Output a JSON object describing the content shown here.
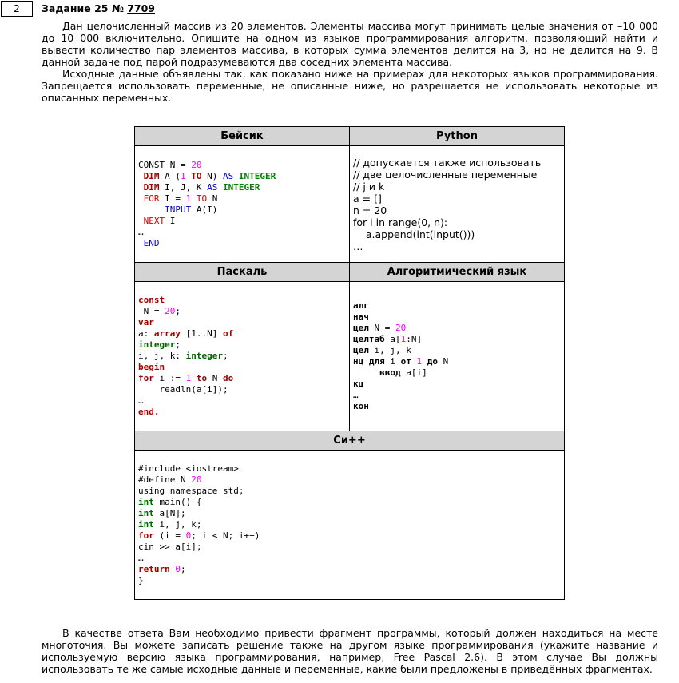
{
  "task": {
    "number": "2",
    "title_prefix": "Задание 25 №",
    "title_link": "7709"
  },
  "intro": {
    "p1": "Дан целочисленный массив из 20 элементов. Элементы массива могут принимать целые значения от –10 000 до 10 000 включительно. Опишите на одном из языков программирования алгоритм, позволяющий найти и вывести количество пар элементов массива, в которых сумма элементов делится на 3, но не делится на 9. В данной задаче под парой подразумеваются два соседних элемента массива.",
    "p2": "Исходные данные объявлены так, как показано ниже на примерах для некоторых языков программирования. Запрещается использовать переменные, не описанные ниже, но разрешается не использовать некоторые из описанных переменных."
  },
  "table": {
    "basic_header": "Бейсик",
    "python_header": "Python",
    "pascal_header": "Паскаль",
    "alg_header": "Алгоритмический язык",
    "cpp_header": "Си++"
  },
  "basic": {
    "l1": "CONST N = ",
    "l1n": "20",
    "l2a": " DIM",
    "l2b": " A (",
    "l2n": "1",
    "l2c": " TO",
    "l2d": " N) ",
    "l2e": "AS",
    "l2f": " INTEGER",
    "l3a": " DIM",
    "l3b": " I, J, K ",
    "l3c": "AS",
    "l3d": " INTEGER",
    "l4a": " FOR",
    "l4b": " I = ",
    "l4n": "1",
    "l4c": " TO",
    "l4d": " N",
    "l5a": "     INPUT",
    "l5b": " A(I)",
    "l6a": " NEXT",
    "l6b": " I",
    "l7": "…",
    "l8": " END"
  },
  "python": {
    "l1": "// допускается также использовать",
    "l2": "// две целочисленные переменные",
    "l3": "// j и k",
    "l4": "a = []",
    "l5": "n = 20",
    "l6": "for i in range(0, n):",
    "l7": "    a.append(int(input()))",
    "l8": "…"
  },
  "pascal": {
    "l1": "const",
    "l2a": " N = ",
    "l2n": "20",
    "l2b": ";",
    "l3": "var",
    "l4a": "a: ",
    "l4b": "array",
    "l4c": " [1..N] ",
    "l4d": "of",
    "l5a": "integer",
    "l5b": ";",
    "l6a": "i, j, k: ",
    "l6b": "integer",
    "l6c": ";",
    "l7": "begin",
    "l8a": "for",
    "l8b": " i := ",
    "l8n": "1",
    "l8c": " to",
    "l8d": " N ",
    "l8e": "do",
    "l9": "    readln(a[i]);",
    "l10": "…",
    "l11": "end."
  },
  "alg": {
    "l1": "алг",
    "l2": "нач",
    "l3a": "цел",
    "l3b": " N = ",
    "l3n": "20",
    "l4a": "целтаб",
    "l4b": " a[",
    "l4n": "1",
    "l4c": ":N]",
    "l5a": "цел",
    "l5b": " i, j, k",
    "l6a": "нц для",
    "l6b": " i ",
    "l6c": "от",
    "l6n": " 1",
    "l6d": " до",
    "l6e": " N",
    "l7a": "     ввод",
    "l7b": " a[i]",
    "l8": "кц",
    "l9": "…",
    "l10": "кон"
  },
  "cpp": {
    "l1": "#include <iostream>",
    "l2a": "#define N ",
    "l2n": "20",
    "l3": "using namespace std;",
    "l4a": "int",
    "l4b": " main() {",
    "l5a": "int",
    "l5b": " a[N];",
    "l6a": "int",
    "l6b": " i, j, k;",
    "l7a": "for",
    "l7b": " (i = ",
    "l7n": "0",
    "l7c": "; i < N; i++)",
    "l8": "cin >> a[i];",
    "l9": "…",
    "l10a": "return",
    "l10n": " 0",
    "l10b": ";",
    "l11": "}"
  },
  "outro": {
    "p1": "В качестве ответа Вам необходимо привести фрагмент программы, который должен находиться на месте многоточия. Вы можете записать решение также на другом языке программирования (укажите название и используемую версию языка программирования, например, Free Pascal 2.6). В этом случае Вы должны использовать те же самые исходные данные и переменные, какие были предложены в приведённых фрагментах."
  }
}
